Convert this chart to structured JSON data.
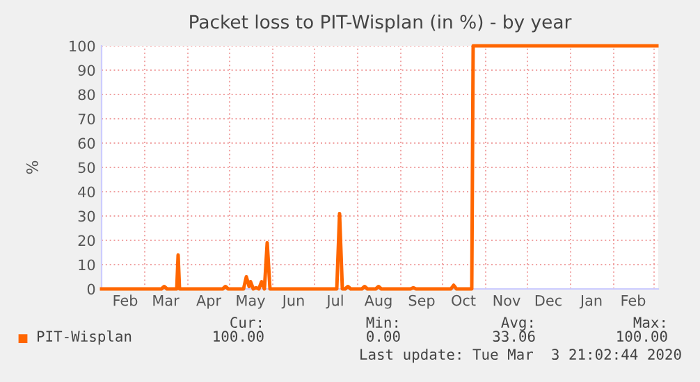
{
  "chart_data": {
    "type": "line",
    "title": "Packet loss to PIT-Wisplan (in %) - by year",
    "ylabel": "%",
    "series": [
      {
        "name": "PIT-Wisplan",
        "color": "#ff6600",
        "x": [
          "2019-01-29",
          "2019-03-13",
          "2019-03-15",
          "2019-03-17",
          "2019-03-24",
          "2019-03-25",
          "2019-03-26",
          "2019-04-26",
          "2019-04-28",
          "2019-04-30",
          "2019-05-11",
          "2019-05-13",
          "2019-05-15",
          "2019-05-16",
          "2019-05-18",
          "2019-05-20",
          "2019-05-22",
          "2019-05-24",
          "2019-05-26",
          "2019-05-28",
          "2019-05-30",
          "2019-07-17",
          "2019-07-19",
          "2019-07-21",
          "2019-07-23",
          "2019-07-25",
          "2019-07-27",
          "2019-08-04",
          "2019-08-06",
          "2019-08-08",
          "2019-08-14",
          "2019-08-16",
          "2019-08-18",
          "2019-09-08",
          "2019-09-10",
          "2019-09-12",
          "2019-10-07",
          "2019-10-09",
          "2019-10-11",
          "2019-10-22",
          "2019-10-23",
          "2020-03-03"
        ],
        "values": [
          0,
          0,
          1,
          0,
          0,
          14,
          0,
          0,
          1,
          0,
          0,
          5,
          1,
          3,
          0,
          0.5,
          0,
          3,
          0,
          19,
          0,
          0,
          31,
          0,
          0,
          1,
          0,
          0,
          1,
          0,
          0,
          1,
          0,
          0,
          0.5,
          0,
          0,
          1.5,
          0,
          0,
          100,
          100
        ]
      }
    ],
    "xlim": [
      "2019-01-29",
      "2020-03-04"
    ],
    "xticks": [
      {
        "value": "2019-03-01",
        "label": null
      },
      {
        "value": "2019-04-01",
        "label": null
      },
      {
        "value": "2019-05-01",
        "label": null
      },
      {
        "value": "2019-06-01",
        "label": null
      },
      {
        "value": "2019-07-01",
        "label": null
      },
      {
        "value": "2019-08-01",
        "label": null
      },
      {
        "value": "2019-09-01",
        "label": null
      },
      {
        "value": "2019-10-01",
        "label": null
      },
      {
        "value": "2019-11-01",
        "label": null
      },
      {
        "value": "2019-12-01",
        "label": null
      },
      {
        "value": "2020-01-01",
        "label": null
      },
      {
        "value": "2020-02-01",
        "label": null
      },
      {
        "value": "2020-03-01",
        "label": null
      },
      {
        "value": "2019-02-15",
        "label": "Feb"
      },
      {
        "value": "2019-03-16",
        "label": "Mar"
      },
      {
        "value": "2019-04-16",
        "label": "Apr"
      },
      {
        "value": "2019-05-16",
        "label": "May"
      },
      {
        "value": "2019-06-16",
        "label": "Jun"
      },
      {
        "value": "2019-07-16",
        "label": "Jul"
      },
      {
        "value": "2019-08-16",
        "label": "Aug"
      },
      {
        "value": "2019-09-16",
        "label": "Sep"
      },
      {
        "value": "2019-10-16",
        "label": "Oct"
      },
      {
        "value": "2019-11-16",
        "label": "Nov"
      },
      {
        "value": "2019-12-16",
        "label": "Dec"
      },
      {
        "value": "2020-01-16",
        "label": "Jan"
      },
      {
        "value": "2020-02-15",
        "label": "Feb"
      }
    ],
    "ylim": [
      0,
      100
    ],
    "yticks": [
      0,
      10,
      20,
      30,
      40,
      50,
      60,
      70,
      80,
      90,
      100
    ],
    "grid": true,
    "legend": "bottom left",
    "line_style": "solid",
    "annotations": [
      "Cur:",
      "Min:",
      "Avg:",
      "Max:",
      "100.00",
      "0.00",
      "33.06",
      "100.00",
      "Last update: Tue Mar  3 21:02:44 2020"
    ]
  }
}
